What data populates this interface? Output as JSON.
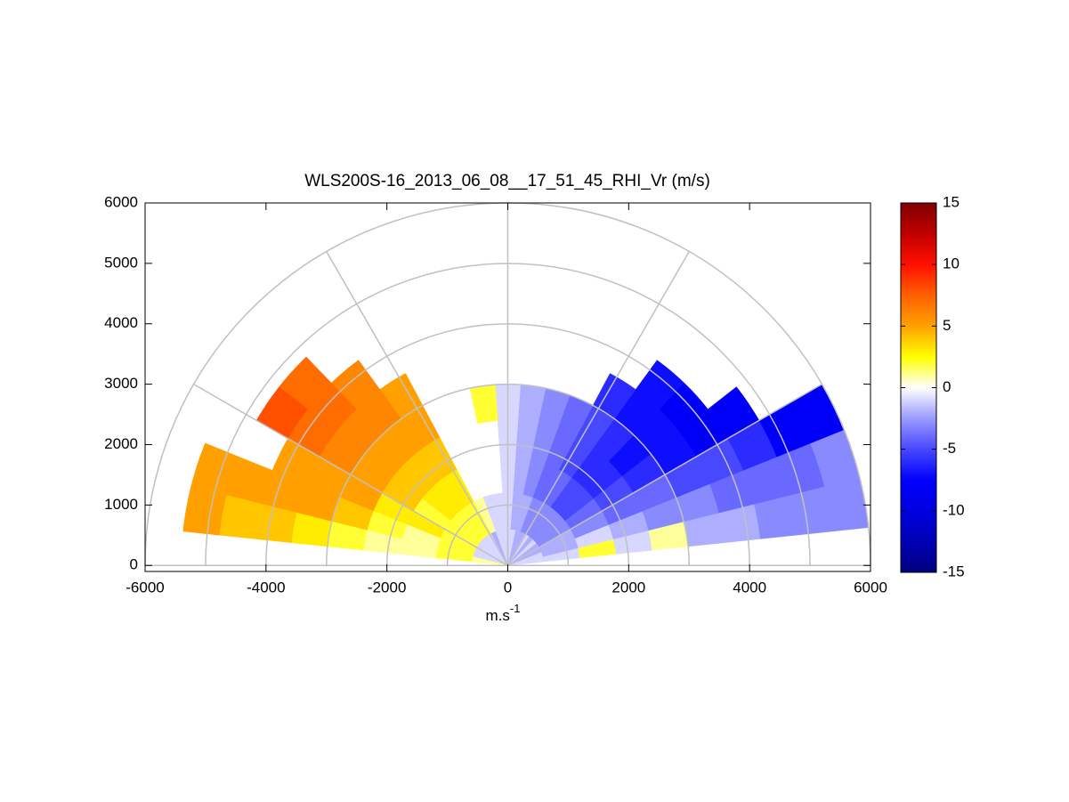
{
  "chart_data": {
    "type": "rhi",
    "title": "WLS200S-16_2013_06_08__17_51_45_RHI_Vr (m/s)",
    "xlabel": {
      "base": "m.s",
      "superscript": "-1"
    },
    "xlim": [
      -6000,
      6000
    ],
    "xticks": [
      -6000,
      -4000,
      -2000,
      0,
      2000,
      4000,
      6000
    ],
    "ylim": [
      -100,
      6000
    ],
    "yticks": [
      0,
      1000,
      2000,
      3000,
      4000,
      5000,
      6000
    ],
    "range_rings": [
      1000,
      2000,
      3000,
      4000,
      5000,
      6000
    ],
    "spoke_angles": [
      0,
      30,
      60,
      90,
      120,
      150,
      180
    ],
    "grid_color": "#c0c0c0",
    "elevations": [
      10,
      18,
      26,
      34,
      42,
      50,
      58,
      66,
      74,
      82,
      90,
      98,
      106,
      114,
      122,
      130,
      138,
      146,
      154,
      162,
      170
    ],
    "gates": [
      300,
      900,
      1500,
      2100,
      2700,
      3300,
      3900,
      4500,
      5100,
      5700
    ],
    "values": [
      [
        -1,
        -1,
        2,
        -1,
        1,
        -2,
        -2,
        -3,
        -3,
        -3
      ],
      [
        -1,
        -2,
        -1,
        -2,
        -3,
        -3,
        -4,
        -4,
        -4,
        -3
      ],
      [
        -2,
        -2,
        -3,
        -4,
        -4,
        -5,
        -5,
        -6,
        -8,
        -8
      ],
      [
        -2,
        -3,
        -4,
        -5,
        -6,
        -7,
        -8,
        -8,
        null,
        null
      ],
      [
        -1,
        -3,
        -5,
        -6,
        -7,
        -7,
        -8,
        null,
        null,
        null
      ],
      [
        -2,
        -3,
        -5,
        -6,
        -6,
        -7,
        -7,
        null,
        null,
        null
      ],
      [
        -1,
        -3,
        -4,
        -5,
        -5,
        -6,
        null,
        null,
        null,
        null
      ],
      [
        -2,
        -3,
        -4,
        -4,
        -4,
        null,
        null,
        null,
        null,
        null
      ],
      [
        -2,
        -2,
        -3,
        -3,
        -3,
        null,
        null,
        null,
        null,
        null
      ],
      [
        -1,
        -2,
        -2,
        -2,
        -2,
        null,
        null,
        null,
        null,
        null
      ],
      [
        -1,
        -1,
        -1,
        -1,
        -1,
        null,
        null,
        null,
        null,
        null
      ],
      [
        -1,
        -1,
        null,
        null,
        2,
        null,
        null,
        null,
        null,
        null
      ],
      [
        -1,
        -1,
        null,
        null,
        null,
        null,
        null,
        null,
        null,
        null
      ],
      [
        -2,
        1,
        null,
        null,
        null,
        null,
        null,
        null,
        null,
        null
      ],
      [
        -1,
        2,
        3,
        4,
        5,
        5,
        null,
        null,
        null,
        null
      ],
      [
        -1,
        2,
        3,
        4,
        5,
        6,
        6,
        null,
        null,
        null
      ],
      [
        -1,
        2,
        3,
        4,
        5,
        6,
        7,
        7,
        null,
        null
      ],
      [
        -1,
        2,
        2,
        4,
        5,
        6,
        7,
        8,
        null,
        null
      ],
      [
        -1,
        2,
        3,
        3,
        5,
        5,
        5,
        null,
        null,
        null
      ],
      [
        -1,
        2,
        1,
        2,
        4,
        5,
        5,
        5,
        5,
        null
      ],
      [
        1,
        2,
        1,
        1,
        2,
        3,
        4,
        4,
        5,
        null
      ]
    ],
    "clim": [
      -15,
      15
    ],
    "cticks": [
      -15,
      -10,
      -5,
      0,
      5,
      10,
      15
    ],
    "colormap": [
      "#00007f",
      "#0000b4",
      "#0000e0",
      "#0000ff",
      "#4848ff",
      "#9a9aff",
      "#ffffff",
      "#ffff00",
      "#ffa000",
      "#ff6000",
      "#ff1000",
      "#c00000",
      "#800000"
    ]
  }
}
